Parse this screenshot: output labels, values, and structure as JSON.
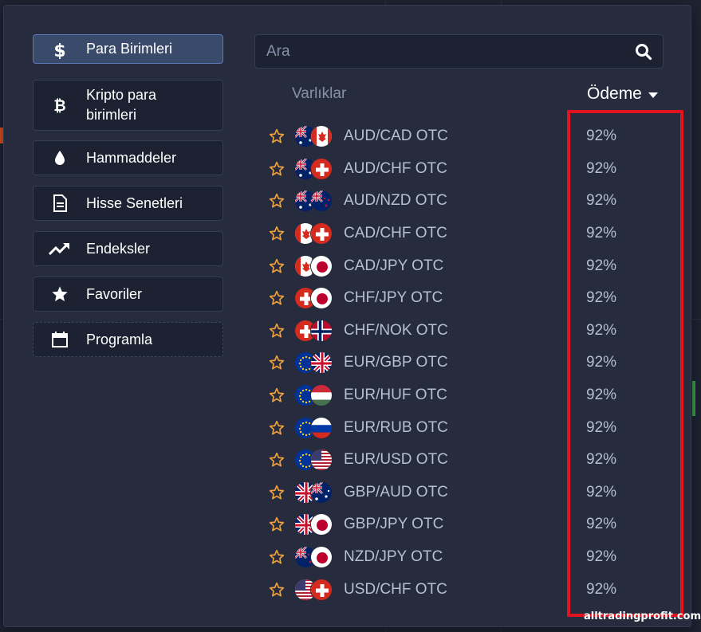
{
  "categories": [
    {
      "label": "Para Birimleri",
      "icon": "dollar-icon",
      "active": true
    },
    {
      "label": "Kripto para birimleri",
      "icon": "bitcoin-icon",
      "active": false
    },
    {
      "label": "Hammaddeler",
      "icon": "drop-icon",
      "active": false
    },
    {
      "label": "Hisse Senetleri",
      "icon": "document-icon",
      "active": false
    },
    {
      "label": "Endeksler",
      "icon": "trend-up-icon",
      "active": false
    },
    {
      "label": "Favoriler",
      "icon": "star-icon",
      "active": false
    },
    {
      "label": "Programla",
      "icon": "calendar-icon",
      "active": false
    }
  ],
  "search": {
    "placeholder": "Ara",
    "value": ""
  },
  "table": {
    "assets_header": "Varlıklar",
    "payout_header": "Ödeme",
    "rows": [
      {
        "name": "AUD/CAD OTC",
        "payout": "92%",
        "flags": [
          "AU",
          "CA"
        ]
      },
      {
        "name": "AUD/CHF OTC",
        "payout": "92%",
        "flags": [
          "AU",
          "CH"
        ]
      },
      {
        "name": "AUD/NZD OTC",
        "payout": "92%",
        "flags": [
          "AU",
          "NZ"
        ]
      },
      {
        "name": "CAD/CHF OTC",
        "payout": "92%",
        "flags": [
          "CA",
          "CH"
        ]
      },
      {
        "name": "CAD/JPY OTC",
        "payout": "92%",
        "flags": [
          "CA",
          "JP"
        ]
      },
      {
        "name": "CHF/JPY OTC",
        "payout": "92%",
        "flags": [
          "CH",
          "JP"
        ]
      },
      {
        "name": "CHF/NOK OTC",
        "payout": "92%",
        "flags": [
          "CH",
          "NO"
        ]
      },
      {
        "name": "EUR/GBP OTC",
        "payout": "92%",
        "flags": [
          "EU",
          "GB"
        ]
      },
      {
        "name": "EUR/HUF OTC",
        "payout": "92%",
        "flags": [
          "EU",
          "HU"
        ]
      },
      {
        "name": "EUR/RUB OTC",
        "payout": "92%",
        "flags": [
          "EU",
          "RU"
        ]
      },
      {
        "name": "EUR/USD OTC",
        "payout": "92%",
        "flags": [
          "EU",
          "US"
        ]
      },
      {
        "name": "GBP/AUD OTC",
        "payout": "92%",
        "flags": [
          "GB",
          "AU"
        ]
      },
      {
        "name": "GBP/JPY OTC",
        "payout": "92%",
        "flags": [
          "GB",
          "JP"
        ]
      },
      {
        "name": "NZD/JPY OTC",
        "payout": "92%",
        "flags": [
          "NZ",
          "JP"
        ]
      },
      {
        "name": "USD/CHF OTC",
        "payout": "92%",
        "flags": [
          "US",
          "CH"
        ]
      }
    ]
  },
  "watermark": "alltradingprofit.com",
  "colors": {
    "accent": "#5a7ab8",
    "star": "#f0a03c",
    "highlight": "#e0141e"
  }
}
